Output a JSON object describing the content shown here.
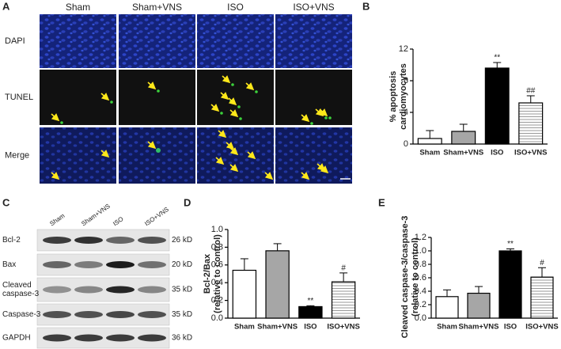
{
  "panel_labels": [
    "A",
    "B",
    "C",
    "D",
    "E"
  ],
  "microscopy": {
    "columns": [
      "Sham",
      "Sham+VNS",
      "ISO",
      "ISO+VNS"
    ],
    "rows": [
      "DAPI",
      "TUNEL",
      "Merge"
    ]
  },
  "blot": {
    "lanes": [
      "Sham",
      "Sham+VNS",
      "ISO",
      "ISO+VNS"
    ],
    "rows": [
      {
        "label_lines": [
          "Bcl-2"
        ],
        "size": "26 kD"
      },
      {
        "label_lines": [
          "Bax"
        ],
        "size": "20 kD"
      },
      {
        "label_lines": [
          "Cleaved",
          "caspase-3"
        ],
        "size": "35 kD"
      },
      {
        "label_lines": [
          "Caspase-3"
        ],
        "size": "35 kD"
      },
      {
        "label_lines": [
          "GAPDH"
        ],
        "size": "36 kD"
      }
    ]
  },
  "chart_data": [
    {
      "type": "bar",
      "ylabel": [
        "% apoptosis",
        "cardiomyocytes"
      ],
      "categories": [
        "Sham",
        "Sham+VNS",
        "ISO",
        "ISO+VNS"
      ],
      "values": [
        0.7,
        1.6,
        9.6,
        5.2
      ],
      "errors": [
        1.0,
        0.9,
        0.7,
        0.9
      ],
      "colors": [
        "#ffffff",
        "#a6a6a6",
        "#000000",
        "#ffffff"
      ],
      "hatched": [
        false,
        false,
        false,
        true
      ],
      "annotations": [
        null,
        null,
        "**",
        "##"
      ],
      "ylim": [
        0,
        12
      ],
      "yticks": [
        0,
        4,
        8,
        12
      ]
    },
    {
      "type": "bar",
      "ylabel": [
        "Bcl-2/Bax",
        "(relative to control)"
      ],
      "categories": [
        "Sham",
        "Sham+VNS",
        "ISO",
        "ISO+VNS"
      ],
      "values": [
        0.54,
        0.76,
        0.13,
        0.41
      ],
      "errors": [
        0.13,
        0.08,
        0.01,
        0.1
      ],
      "colors": [
        "#ffffff",
        "#a6a6a6",
        "#000000",
        "#ffffff"
      ],
      "hatched": [
        false,
        false,
        false,
        true
      ],
      "annotations": [
        null,
        null,
        "**",
        "#"
      ],
      "ylim": [
        0,
        1.0
      ],
      "yticks": [
        {
          "value": 0,
          "label": "0.0"
        },
        0.2,
        0.4,
        0.6,
        0.8,
        {
          "value": 1,
          "label": "1.0"
        }
      ]
    },
    {
      "type": "bar",
      "ylabel": [
        "Cleaved caspase-3/caspase-3",
        "(relative to control)"
      ],
      "categories": [
        "Sham",
        "Sham+VNS",
        "ISO",
        "ISO+VNS"
      ],
      "values": [
        0.32,
        0.37,
        1.0,
        0.61
      ],
      "errors": [
        0.1,
        0.1,
        0.03,
        0.14
      ],
      "colors": [
        "#ffffff",
        "#a6a6a6",
        "#000000",
        "#ffffff"
      ],
      "hatched": [
        false,
        false,
        false,
        true
      ],
      "annotations": [
        null,
        null,
        "**",
        "#"
      ],
      "ylim": [
        0,
        1.2
      ],
      "yticks": [
        {
          "value": 0,
          "label": "0.0"
        },
        0.2,
        0.4,
        0.6,
        0.8,
        {
          "value": 1,
          "label": "1.0"
        },
        1.2
      ]
    }
  ]
}
